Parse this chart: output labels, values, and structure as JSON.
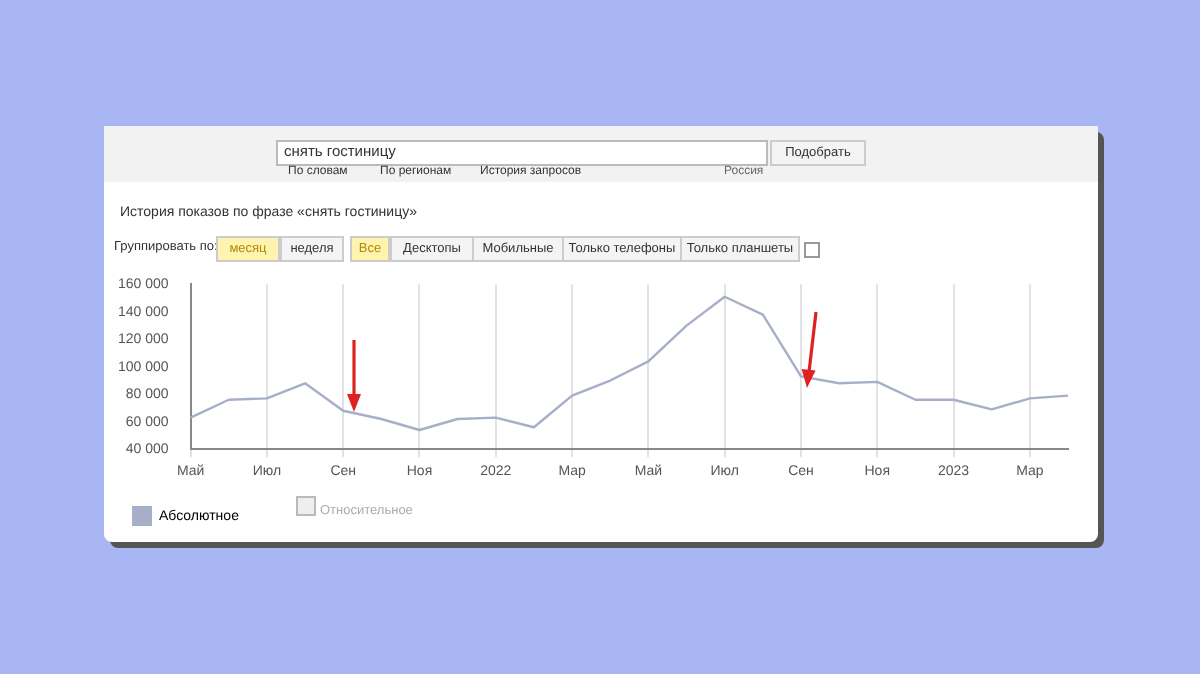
{
  "chart_data": {
    "type": "line",
    "title": "История показов по фразе «снять гостиницу»",
    "categories": [
      "Май",
      null,
      "Июл",
      null,
      "Сен",
      null,
      "Ноя",
      null,
      "2022",
      null,
      "Мар",
      null,
      "Май",
      null,
      "Июл",
      null,
      "Сен",
      null,
      "Ноя",
      null,
      "2023",
      null,
      "Мар",
      null
    ],
    "series": [
      {
        "name": "Абсолютное",
        "color": "#a7afc8",
        "values": [
          63000,
          76000,
          77000,
          88000,
          68000,
          62000,
          54000,
          62000,
          63000,
          56000,
          79000,
          90000,
          104000,
          130000,
          151000,
          138000,
          93000,
          88000,
          89000,
          76000,
          76000,
          69000,
          77000,
          79000
        ]
      }
    ],
    "ylim": [
      40000,
      160000
    ],
    "yticks": [
      {
        "value": 40000,
        "label": "40 000"
      },
      {
        "value": 60000,
        "label": "60 000"
      },
      {
        "value": 80000,
        "label": "80 000"
      },
      {
        "value": 100000,
        "label": "100 000"
      },
      {
        "value": 120000,
        "label": "120 000"
      },
      {
        "value": 140000,
        "label": "140 000"
      },
      {
        "value": 160000,
        "label": "160 000"
      }
    ],
    "grid": "x",
    "legend": "bottom left",
    "marker": "none",
    "line_style": "solid",
    "annotations": [
      "снять гостиницу",
      "Подобрать",
      "По словам",
      "По регионам",
      "История запросов",
      "Россия",
      "Группировать по:",
      "месяц",
      "неделя",
      "Все",
      "Десктопы",
      "Мобильные",
      "Только телефоны",
      "Только планшеты",
      "Относительное"
    ]
  }
}
